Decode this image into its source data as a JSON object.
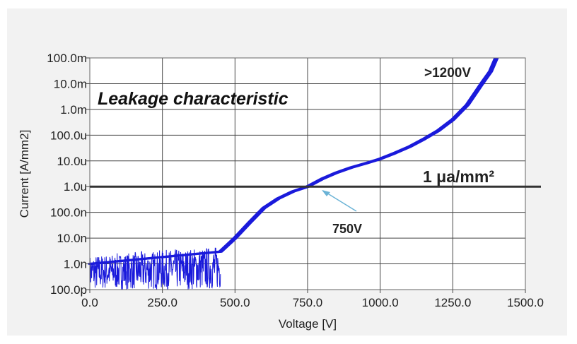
{
  "chart_data": {
    "type": "line",
    "title": "Leakage characteristic",
    "xlabel": "Voltage [V]",
    "ylabel": "Current [A/mm2]",
    "x_scale": "linear",
    "y_scale": "log",
    "xlim": [
      0,
      1500
    ],
    "ylim": [
      1e-10,
      0.1
    ],
    "grid": true,
    "x_ticks": [
      {
        "value": 0,
        "label": "0.0"
      },
      {
        "value": 250,
        "label": "250.0"
      },
      {
        "value": 500,
        "label": "500.0"
      },
      {
        "value": 750,
        "label": "750.0"
      },
      {
        "value": 1000,
        "label": "1000.0"
      },
      {
        "value": 1250,
        "label": "1250.0"
      },
      {
        "value": 1500,
        "label": "1500.0"
      }
    ],
    "y_ticks": [
      {
        "value": 0.1,
        "label": "100.0m"
      },
      {
        "value": 0.01,
        "label": "10.0m"
      },
      {
        "value": 0.001,
        "label": "1.0m"
      },
      {
        "value": 0.0001,
        "label": "100.0u"
      },
      {
        "value": 1e-05,
        "label": "10.0u"
      },
      {
        "value": 1e-06,
        "label": "1.0u"
      },
      {
        "value": 1e-07,
        "label": "100.0n"
      },
      {
        "value": 1e-08,
        "label": "10.0n"
      },
      {
        "value": 1e-09,
        "label": "1.0n"
      },
      {
        "value": 1e-10,
        "label": "100.0p"
      }
    ],
    "series": [
      {
        "color": "#1a1adb",
        "x": [
          0,
          450,
          500,
          550,
          600,
          650,
          700,
          750,
          800,
          850,
          900,
          950,
          1000,
          1050,
          1100,
          1150,
          1200,
          1250,
          1300,
          1350,
          1380,
          1400
        ],
        "y": [
          1e-09,
          3e-09,
          1e-08,
          4e-08,
          1.5e-07,
          3.5e-07,
          6.5e-07,
          1e-06,
          2e-06,
          3.5e-06,
          5.5e-06,
          8e-06,
          1.2e-05,
          2e-05,
          3.5e-05,
          7e-05,
          0.00015,
          0.0004,
          0.0015,
          0.01,
          0.03,
          0.1
        ],
        "noise_range_x": [
          0,
          450
        ],
        "noise_range_y": [
          1e-10,
          5e-09
        ]
      }
    ],
    "reference_line": {
      "y": 1e-06,
      "label": "1 μa/mm²",
      "color": "#333333"
    },
    "annotations": [
      {
        "text": "750V",
        "x": 780,
        "y": 1e-06
      },
      {
        "text": ">1200V"
      }
    ]
  }
}
